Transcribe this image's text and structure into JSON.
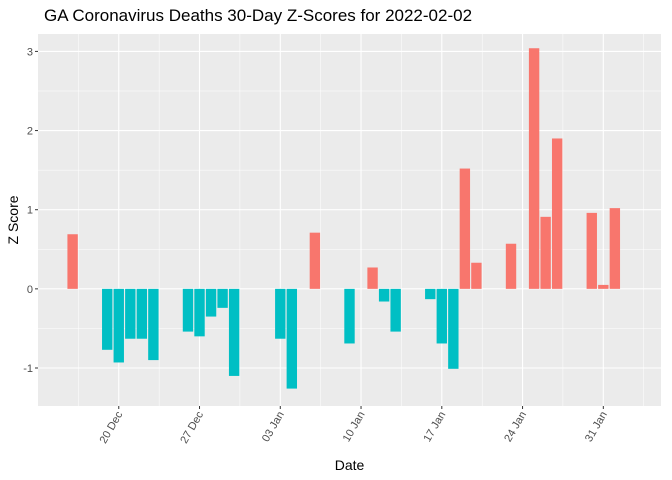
{
  "chart_data": {
    "type": "bar",
    "title": "GA Coronavirus Deaths 30-Day Z-Scores for 2022-02-02",
    "xlabel": "Date",
    "ylabel": "Z Score",
    "x_tick_labels": [
      "20 Dec",
      "27 Dec",
      "03 Jan",
      "10 Jan",
      "17 Jan",
      "24 Jan",
      "31 Jan"
    ],
    "x_tick_dates": [
      "2021-12-20",
      "2021-12-27",
      "2022-01-03",
      "2022-01-10",
      "2022-01-17",
      "2022-01-24",
      "2022-01-31"
    ],
    "y_ticks": [
      -1,
      0,
      1,
      2,
      3
    ],
    "ylim": [
      -1.48,
      3.22
    ],
    "xlim": [
      "2021-12-13",
      "2022-02-05"
    ],
    "grid": true,
    "legend": "none",
    "positive_color": "#F8766D",
    "negative_color": "#00BFC4",
    "panel_color": "#EBEBEB",
    "bars": [
      {
        "date": "2021-12-16",
        "value": 0.69
      },
      {
        "date": "2021-12-19",
        "value": -0.77
      },
      {
        "date": "2021-12-20",
        "value": -0.93
      },
      {
        "date": "2021-12-21",
        "value": -0.63
      },
      {
        "date": "2021-12-22",
        "value": -0.63
      },
      {
        "date": "2021-12-23",
        "value": -0.9
      },
      {
        "date": "2021-12-26",
        "value": -0.54
      },
      {
        "date": "2021-12-27",
        "value": -0.6
      },
      {
        "date": "2021-12-28",
        "value": -0.35
      },
      {
        "date": "2021-12-29",
        "value": -0.24
      },
      {
        "date": "2021-12-30",
        "value": -1.1
      },
      {
        "date": "2022-01-03",
        "value": -0.63
      },
      {
        "date": "2022-01-04",
        "value": -1.26
      },
      {
        "date": "2022-01-06",
        "value": 0.71
      },
      {
        "date": "2022-01-09",
        "value": -0.69
      },
      {
        "date": "2022-01-11",
        "value": 0.27
      },
      {
        "date": "2022-01-12",
        "value": -0.16
      },
      {
        "date": "2022-01-13",
        "value": -0.54
      },
      {
        "date": "2022-01-16",
        "value": -0.13
      },
      {
        "date": "2022-01-17",
        "value": -0.69
      },
      {
        "date": "2022-01-18",
        "value": -1.01
      },
      {
        "date": "2022-01-19",
        "value": 1.52
      },
      {
        "date": "2022-01-20",
        "value": 0.33
      },
      {
        "date": "2022-01-23",
        "value": 0.57
      },
      {
        "date": "2022-01-25",
        "value": 3.04
      },
      {
        "date": "2022-01-26",
        "value": 0.91
      },
      {
        "date": "2022-01-27",
        "value": 1.9
      },
      {
        "date": "2022-01-30",
        "value": 0.96
      },
      {
        "date": "2022-01-31",
        "value": 0.05
      },
      {
        "date": "2022-02-01",
        "value": 1.02
      }
    ]
  }
}
